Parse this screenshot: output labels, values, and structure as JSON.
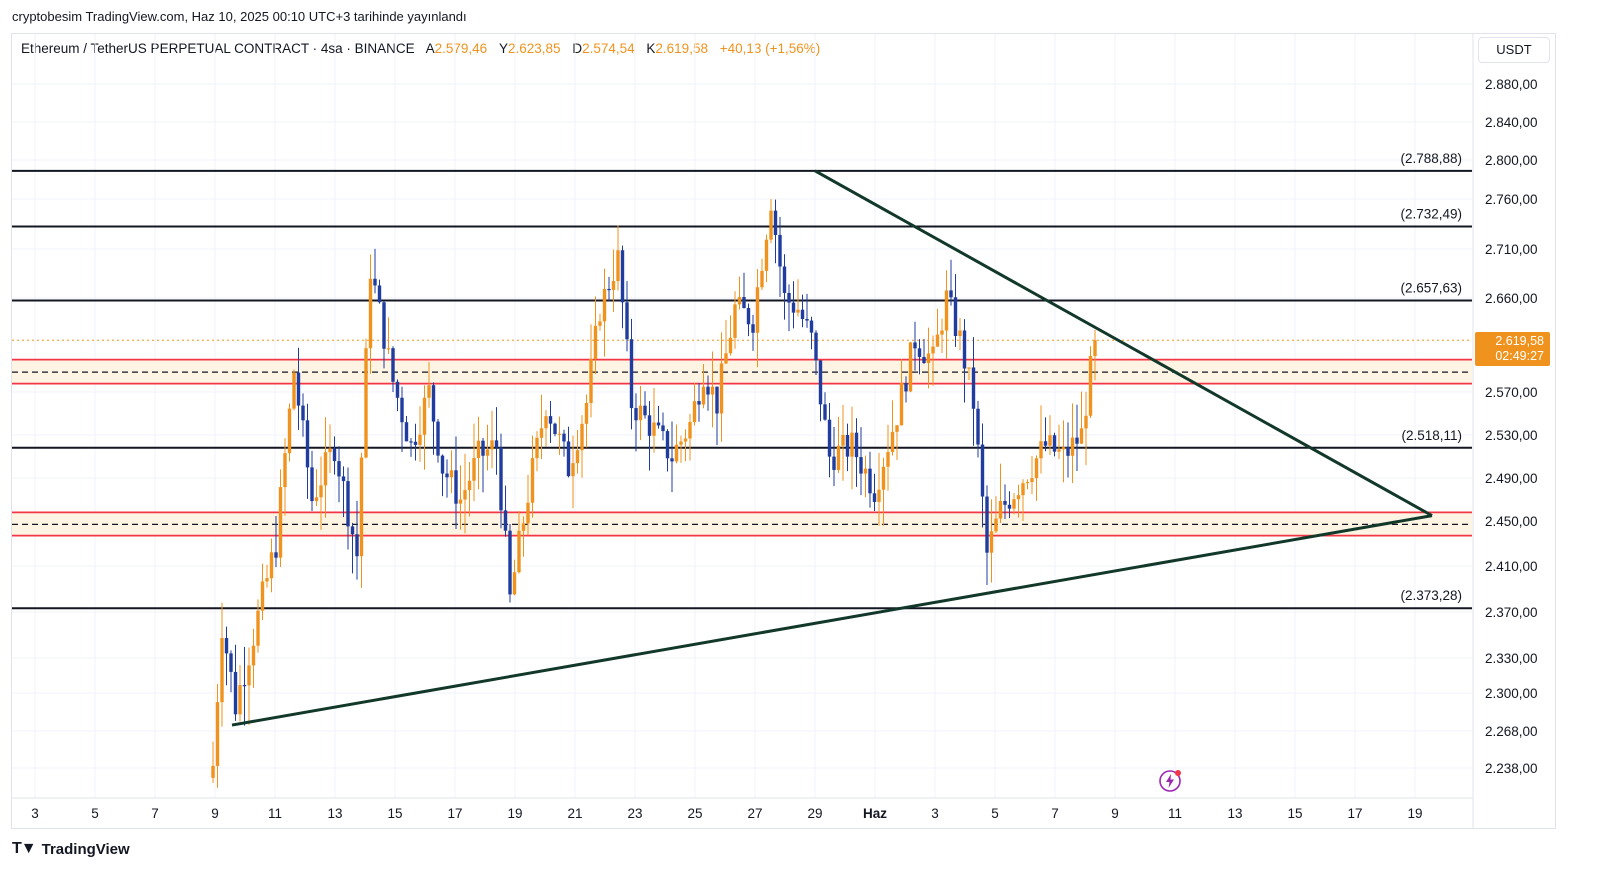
{
  "published": "cryptobesim TradingView.com, Haz 10, 2025 00:10 UTC+3 tarihinde yayınlandı",
  "legend": {
    "symbol": "Ethereum / TetherUS PERPETUAL CONTRACT · 4sa · BINANCE",
    "open_label": "A",
    "open": "2.579,46",
    "high_label": "Y",
    "high": "2.623,85",
    "low_label": "D",
    "low": "2.574,54",
    "close_label": "K",
    "close": "2.619,58",
    "change": "+40,13 (+1,56%)"
  },
  "currency": "USDT",
  "footer": {
    "brand": "TradingView"
  },
  "last_price": {
    "value": "2.619,58",
    "countdown": "02:49:27"
  },
  "colors": {
    "up": "#f0931e",
    "down": "#1f3c9e",
    "level": "#131722",
    "zone_red": "#f23645",
    "trendline": "#12382a",
    "zone_fill": "#fdf4e4",
    "price_tag": "#f0931e"
  },
  "chart_data": {
    "type": "candlestick",
    "ylim": [
      2220,
      2920
    ],
    "y_ticks": [
      {
        "v": 2880,
        "label": "2.880,00"
      },
      {
        "v": 2840,
        "label": "2.840,00"
      },
      {
        "v": 2800,
        "label": "2.800,00"
      },
      {
        "v": 2760,
        "label": "2.760,00"
      },
      {
        "v": 2710,
        "label": "2.710,00"
      },
      {
        "v": 2660,
        "label": "2.660,00"
      },
      {
        "v": 2570,
        "label": "2.570,00"
      },
      {
        "v": 2530,
        "label": "2.530,00"
      },
      {
        "v": 2490,
        "label": "2.490,00"
      },
      {
        "v": 2450,
        "label": "2.450,00"
      },
      {
        "v": 2410,
        "label": "2.410,00"
      },
      {
        "v": 2370,
        "label": "2.370,00"
      },
      {
        "v": 2330,
        "label": "2.330,00"
      },
      {
        "v": 2300,
        "label": "2.300,00"
      },
      {
        "v": 2268,
        "label": "2.268,00"
      },
      {
        "v": 2238,
        "label": "2.238,00"
      }
    ],
    "x_ticks": [
      "3",
      "5",
      "7",
      "9",
      "11",
      "13",
      "15",
      "17",
      "19",
      "21",
      "23",
      "25",
      "27",
      "29",
      "Haz",
      "3",
      "5",
      "7",
      "9",
      "11",
      "13",
      "15",
      "17",
      "19"
    ],
    "horizontal_levels": [
      {
        "value": 2788.88,
        "label": "(2.788,88)"
      },
      {
        "value": 2732.49,
        "label": "(2.732,49)"
      },
      {
        "value": 2657.63,
        "label": "(2.657,63)"
      },
      {
        "value": 2518.11,
        "label": "(2.518,11)"
      },
      {
        "value": 2373.28,
        "label": "(2.373,28)"
      }
    ],
    "zones": [
      {
        "top": 2601,
        "bottom": 2578,
        "mid": 2589
      },
      {
        "top": 2458,
        "bottom": 2437,
        "mid": 2447
      }
    ],
    "trendlines": [
      {
        "name": "descending",
        "from": {
          "day": "29",
          "value": 2788.88
        },
        "to": {
          "day": "18.5 Haz",
          "value": 2455
        }
      },
      {
        "name": "ascending",
        "from": {
          "day": "9.6",
          "value": 2273
        },
        "to": {
          "day": "18.5 Haz",
          "value": 2455
        }
      }
    ],
    "last_close": 2619.58,
    "anchors": [
      [
        0,
        2240
      ],
      [
        2,
        2360
      ],
      [
        5,
        2290
      ],
      [
        9,
        2350
      ],
      [
        14,
        2430
      ],
      [
        18,
        2590
      ],
      [
        22,
        2470
      ],
      [
        27,
        2520
      ],
      [
        32,
        2420
      ],
      [
        35,
        2690
      ],
      [
        40,
        2580
      ],
      [
        44,
        2520
      ],
      [
        48,
        2570
      ],
      [
        51,
        2500
      ],
      [
        55,
        2470
      ],
      [
        59,
        2510
      ],
      [
        63,
        2520
      ],
      [
        66,
        2380
      ],
      [
        70,
        2475
      ],
      [
        74,
        2560
      ],
      [
        79,
        2500
      ],
      [
        83,
        2560
      ],
      [
        86,
        2650
      ],
      [
        90,
        2700
      ],
      [
        93,
        2560
      ],
      [
        97,
        2540
      ],
      [
        102,
        2510
      ],
      [
        106,
        2540
      ],
      [
        109,
        2590
      ],
      [
        112,
        2560
      ],
      [
        116,
        2650
      ],
      [
        120,
        2640
      ],
      [
        124,
        2760
      ],
      [
        127,
        2660
      ],
      [
        130,
        2650
      ],
      [
        133,
        2620
      ],
      [
        137,
        2510
      ],
      [
        142,
        2520
      ],
      [
        147,
        2480
      ],
      [
        152,
        2550
      ],
      [
        156,
        2620
      ],
      [
        160,
        2600
      ],
      [
        163,
        2660
      ],
      [
        166,
        2620
      ],
      [
        169,
        2560
      ],
      [
        172,
        2420
      ],
      [
        175,
        2460
      ],
      [
        180,
        2490
      ],
      [
        185,
        2520
      ],
      [
        189,
        2510
      ],
      [
        193,
        2530
      ],
      [
        196,
        2620
      ]
    ]
  }
}
